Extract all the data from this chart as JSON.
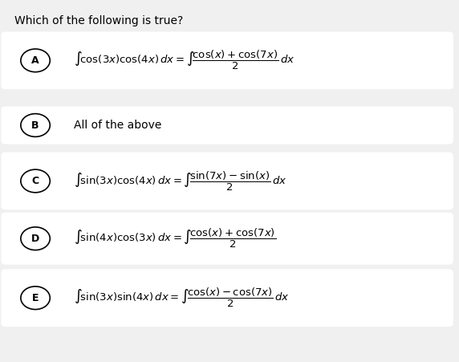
{
  "title": "Which of the following is true?",
  "background_color": "#f0f0f0",
  "box_color": "#ffffff",
  "text_color": "#000000",
  "options": [
    {
      "label": "A",
      "has_box": true,
      "lhs": "$\\int\\!\\cos(3x)\\cos(4x)\\,dx = \\int\\!\\dfrac{\\cos(x)+\\cos(7x)}{2}\\,dx$"
    },
    {
      "label": "B",
      "has_box": true,
      "lhs": "All of the above"
    },
    {
      "label": "C",
      "has_box": true,
      "lhs": "$\\int\\!\\sin(3x)\\cos(4x)\\,dx = \\int\\!\\dfrac{\\sin(7x)-\\sin(x)}{2}\\,dx$"
    },
    {
      "label": "D",
      "has_box": true,
      "lhs": "$\\int\\!\\sin(4x)\\cos(3x)\\,dx = \\int\\!\\dfrac{\\cos(x)+\\cos(7x)}{2}$"
    },
    {
      "label": "E",
      "has_box": true,
      "lhs": "$\\int\\!\\sin(3x)\\sin(4x)\\,dx = \\int\\!\\dfrac{\\cos(x)-\\cos(7x)}{2}\\,dx$"
    }
  ]
}
